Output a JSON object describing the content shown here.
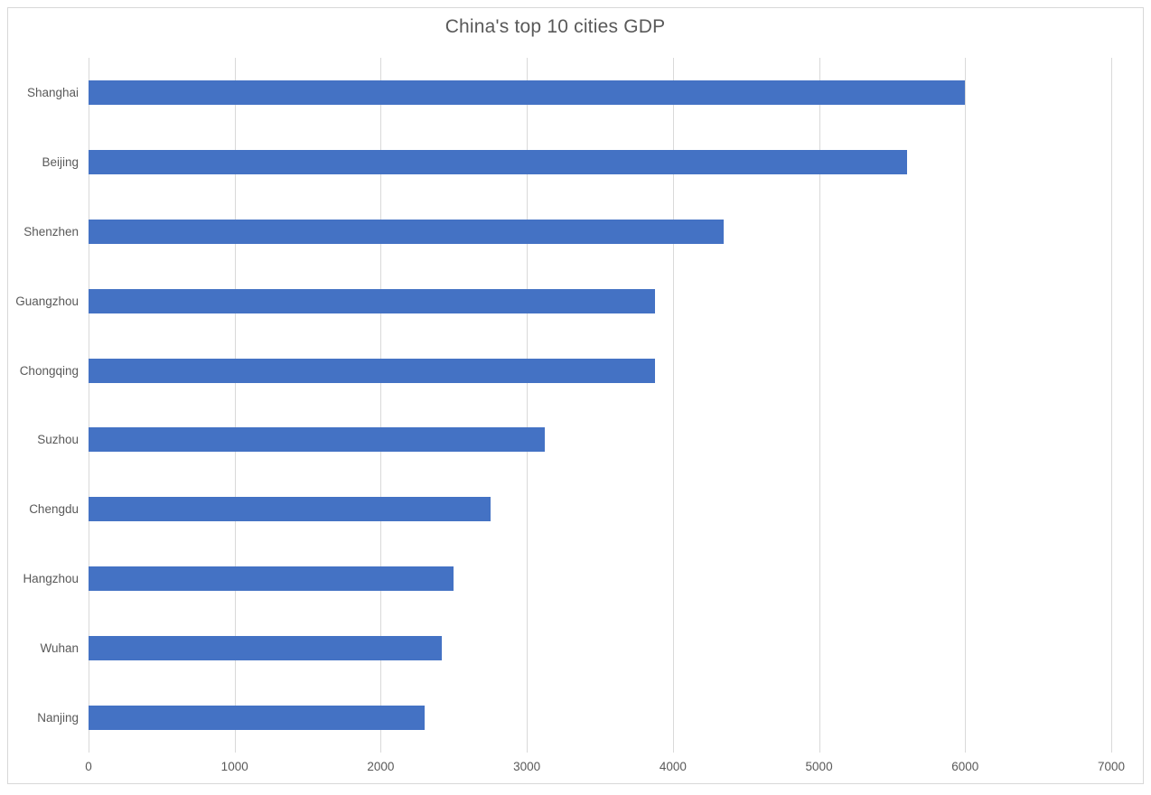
{
  "title": "China's top 10 cities GDP",
  "chart_data": {
    "type": "bar",
    "orientation": "horizontal",
    "title": "China's top 10 cities GDP",
    "xlabel": "",
    "ylabel": "",
    "categories": [
      "Shanghai",
      "Beijing",
      "Shenzhen",
      "Guangzhou",
      "Chongqing",
      "Suzhou",
      "Chengdu",
      "Hangzhou",
      "Wuhan",
      "Nanjing"
    ],
    "values": [
      6000,
      5600,
      4350,
      3880,
      3880,
      3120,
      2750,
      2500,
      2420,
      2300
    ],
    "xlim": [
      0,
      7000
    ],
    "x_ticks": [
      0,
      1000,
      2000,
      3000,
      4000,
      5000,
      6000,
      7000
    ],
    "grid": true,
    "legend": "none",
    "colors": {
      "bar": "#4472c4",
      "text": "#595959",
      "gridline": "#d9d9d9",
      "border": "#d8d8d8",
      "background": "#ffffff"
    }
  }
}
